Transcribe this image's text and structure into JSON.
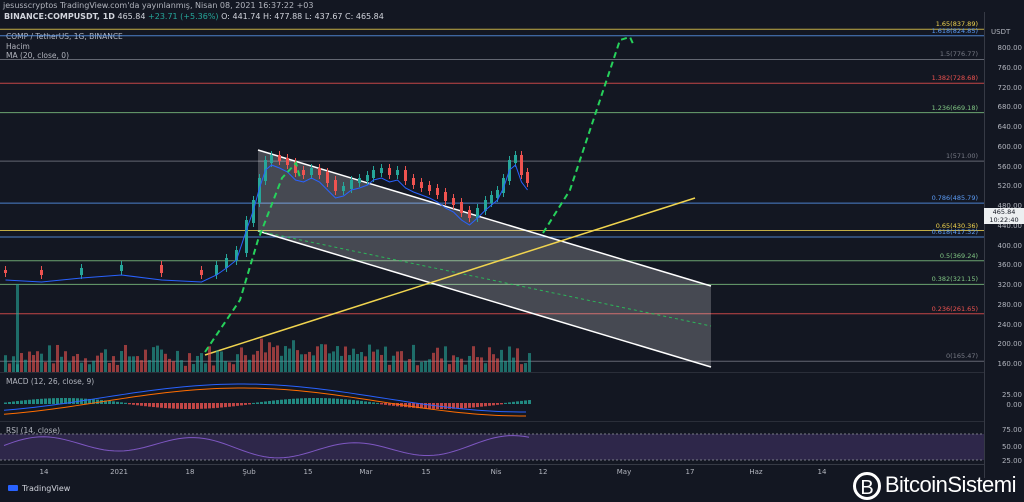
{
  "topbar": {
    "text": "jesusscryptos TradingView.com'da yayınlanmış, Nisan 08, 2021 16:37:22 +03"
  },
  "header": {
    "symbol": "BINANCE:COMPUSDT, 1D",
    "last": "465.84",
    "change": "+23.71 (+5.36%)",
    "ohlc": "O: 441.74 H: 477.88 L: 437.67 C: 465.84"
  },
  "legend": {
    "pair": "COMP / TetherUS, 1G, BINANCE",
    "volume": "Hacim",
    "ma": "MA (20, close, 0)",
    "macd": "MACD (12, 26, close, 9)",
    "rsi": "RSI (14, close)"
  },
  "price_axis": {
    "currency": "USDT",
    "labels": [
      "800.00",
      "760.00",
      "720.00",
      "680.00",
      "640.00",
      "600.00",
      "560.00",
      "520.00",
      "480.00",
      "440.00",
      "400.00",
      "360.00",
      "320.00",
      "280.00",
      "240.00",
      "200.00",
      "160.00"
    ],
    "macd_labels": [
      "25.00",
      "0.00"
    ],
    "rsi_labels": [
      "75.00",
      "50.00",
      "25.00"
    ],
    "current_price": "465.84",
    "countdown": "10:22:40"
  },
  "fib_levels": [
    {
      "label": "1.65(837.89)",
      "price": 837.89,
      "color": "#f0d44f"
    },
    {
      "label": "1.618(824.85)",
      "price": 824.85,
      "color": "#5b9cf6"
    },
    {
      "label": "1.5(776.77)",
      "price": 776.77,
      "color": "#787b86"
    },
    {
      "label": "1.382(728.68)",
      "price": 728.68,
      "color": "#ef5350"
    },
    {
      "label": "1.236(669.18)",
      "price": 669.18,
      "color": "#81c784"
    },
    {
      "label": "1(571.00)",
      "price": 571.0,
      "color": "#787b86"
    },
    {
      "label": "0.786(485.79)",
      "price": 485.79,
      "color": "#5b9cf6"
    },
    {
      "label": "0.65(430.36)",
      "price": 430.36,
      "color": "#f0d44f"
    },
    {
      "label": "0.618(417.32)",
      "price": 417.32,
      "color": "#5b9cf6"
    },
    {
      "label": "0.5(369.24)",
      "price": 369.24,
      "color": "#81c784"
    },
    {
      "label": "0.382(321.15)",
      "price": 321.15,
      "color": "#81c784"
    },
    {
      "label": "0.236(261.65)",
      "price": 261.65,
      "color": "#ef5350"
    },
    {
      "label": "0(165.47)",
      "price": 165.47,
      "color": "#787b86"
    }
  ],
  "time_axis": [
    "14",
    "2021",
    "18",
    "Şub",
    "15",
    "Mar",
    "15",
    "Nis",
    "12",
    "May",
    "17",
    "Haz",
    "14"
  ],
  "footer": {
    "tv": "TradingView",
    "brand": "BitcoinSistemi",
    "brand_mark": "B"
  },
  "colors": {
    "up": "#26a69a",
    "down": "#ef5350",
    "channel": "#ffffff",
    "trend": "#f0d44f",
    "projection": "#26d15b",
    "ma": "#2962ff",
    "rsi": "#7e57c2"
  }
}
